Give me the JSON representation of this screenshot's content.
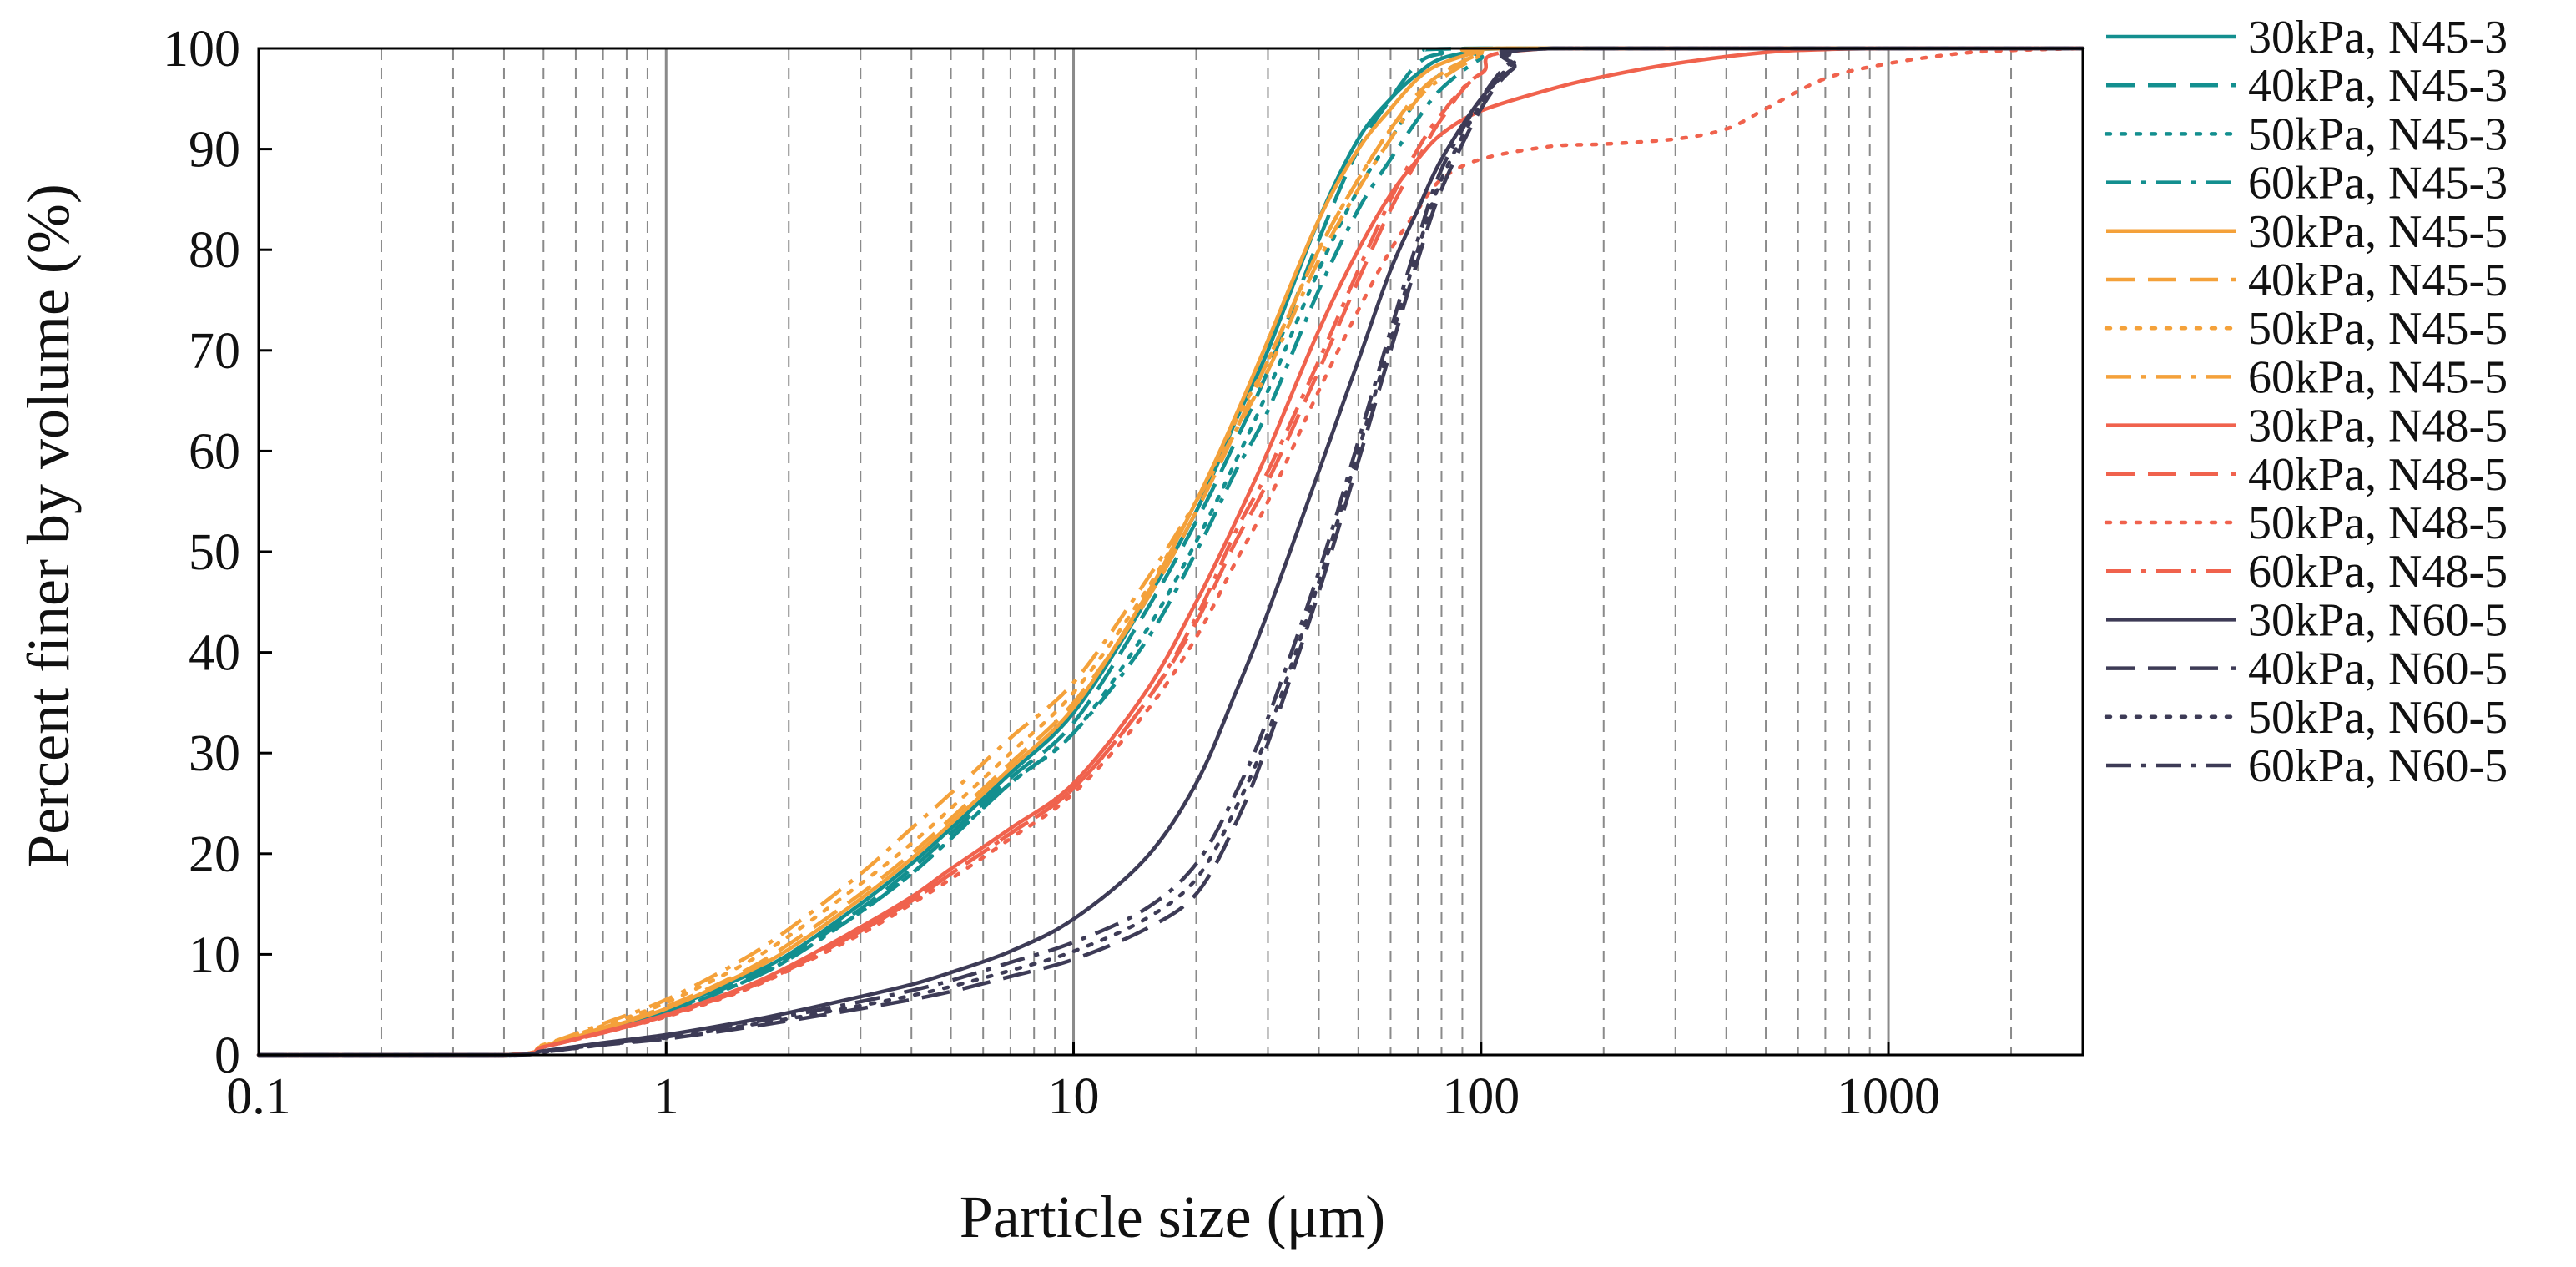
{
  "chart_data": {
    "type": "line",
    "title": "",
    "xlabel": "Particle size (μm)",
    "ylabel": "Percent finer by volume (%)",
    "xscale": "log",
    "xlim": [
      0.1,
      3000
    ],
    "ylim": [
      0,
      100
    ],
    "x_ticks": [
      0.1,
      1,
      10,
      100,
      1000
    ],
    "x_tick_labels": [
      "0.1",
      "1",
      "10",
      "100",
      "1000"
    ],
    "y_ticks": [
      0,
      10,
      20,
      30,
      40,
      50,
      60,
      70,
      80,
      90,
      100
    ],
    "y_tick_labels": [
      "0",
      "10",
      "20",
      "30",
      "40",
      "50",
      "60",
      "70",
      "80",
      "90",
      "100"
    ],
    "grid": "vertical log grid (dashed minor, solid major)",
    "legend_position": "right",
    "colors": {
      "N45-3": "#138f8f",
      "N45-5": "#f4a13a",
      "N48-5": "#f0624d",
      "N60-5": "#3d3b56",
      "axis": "#000000",
      "grid_minor": "#8a8a8a",
      "grid_major": "#8a8a8a"
    },
    "series": [
      {
        "name": "30kPa, N45-3",
        "color": "#138f8f",
        "dash": "solid",
        "x": [
          0.4,
          0.5,
          0.7,
          1,
          1.5,
          2,
          3,
          4,
          5,
          7,
          10,
          15,
          20,
          25,
          30,
          40,
          50,
          60,
          70,
          80,
          100,
          120
        ],
        "y": [
          0,
          0.8,
          2.5,
          4.5,
          7.5,
          10,
          15,
          19,
          22.5,
          28,
          34,
          45,
          54,
          63,
          70,
          83,
          91,
          95,
          97.5,
          99,
          99.8,
          100
        ]
      },
      {
        "name": "40kPa, N45-3",
        "color": "#138f8f",
        "dash": "dashed",
        "x": [
          0.4,
          0.5,
          0.7,
          1,
          1.5,
          2,
          3,
          4,
          5,
          7,
          10,
          15,
          20,
          25,
          30,
          40,
          50,
          60,
          70,
          80,
          100
        ],
        "y": [
          0,
          0.8,
          2.4,
          4.3,
          7.2,
          9.7,
          14.5,
          18.5,
          22,
          27.5,
          33,
          44,
          53,
          61,
          68,
          81,
          90,
          95,
          98.5,
          99.5,
          100
        ]
      },
      {
        "name": "50kPa, N45-3",
        "color": "#138f8f",
        "dash": "dotted",
        "x": [
          0.4,
          0.5,
          0.7,
          1,
          1.5,
          2,
          3,
          4,
          5,
          7,
          10,
          15,
          20,
          25,
          30,
          40,
          50,
          60,
          70,
          80,
          100,
          120
        ],
        "y": [
          0,
          0.8,
          2.4,
          4.2,
          7,
          9.5,
          14.2,
          18,
          21.5,
          27,
          32,
          42,
          51,
          59,
          66,
          78,
          86,
          91,
          95,
          97.5,
          99.5,
          100
        ]
      },
      {
        "name": "60kPa, N45-3",
        "color": "#138f8f",
        "dash": "dashdot",
        "x": [
          0.4,
          0.5,
          0.7,
          1,
          1.5,
          2,
          3,
          4,
          5,
          7,
          10,
          15,
          20,
          25,
          30,
          40,
          50,
          60,
          70,
          80,
          100,
          120
        ],
        "y": [
          0,
          0.8,
          2.4,
          4.2,
          7,
          9.5,
          14.2,
          18,
          21.5,
          27,
          32,
          41,
          50,
          58,
          64,
          76,
          84,
          89,
          93,
          96,
          99,
          100
        ]
      },
      {
        "name": "30kPa, N45-5",
        "color": "#f4a13a",
        "dash": "solid",
        "x": [
          0.4,
          0.5,
          0.7,
          1,
          1.5,
          2,
          3,
          4,
          5,
          7,
          10,
          15,
          20,
          25,
          30,
          40,
          50,
          60,
          70,
          80,
          100,
          120
        ],
        "y": [
          0,
          0.9,
          2.6,
          4.6,
          7.8,
          10.5,
          15.5,
          19.5,
          23,
          28.5,
          34.5,
          45.5,
          55,
          63.5,
          71,
          83,
          90,
          94,
          97,
          98.5,
          99.7,
          100
        ]
      },
      {
        "name": "40kPa, N45-5",
        "color": "#f4a13a",
        "dash": "dashed",
        "x": [
          0.4,
          0.5,
          0.7,
          1,
          1.5,
          2,
          3,
          4,
          5,
          7,
          10,
          15,
          20,
          25,
          30,
          40,
          50,
          60,
          70,
          80,
          100,
          120
        ],
        "y": [
          0,
          0.9,
          2.7,
          4.8,
          8,
          11,
          16,
          20,
          23.5,
          29,
          35,
          45,
          54,
          62,
          69,
          80,
          87,
          92,
          95.5,
          97.5,
          99.5,
          100
        ]
      },
      {
        "name": "50kPa, N45-5",
        "color": "#f4a13a",
        "dash": "dotted",
        "x": [
          0.4,
          0.5,
          0.7,
          1,
          1.5,
          2,
          3,
          4,
          5,
          7,
          10,
          15,
          20,
          25,
          30,
          40,
          50,
          60,
          70,
          80,
          100,
          120
        ],
        "y": [
          0,
          1,
          2.9,
          5.2,
          8.7,
          11.8,
          17,
          21,
          24.5,
          30,
          36,
          46,
          55,
          63,
          69,
          80,
          87,
          92,
          95,
          97.5,
          99.5,
          100
        ]
      },
      {
        "name": "60kPa, N45-5",
        "color": "#f4a13a",
        "dash": "dashdot",
        "x": [
          0.4,
          0.5,
          0.7,
          1,
          1.5,
          2,
          3,
          4,
          5,
          7,
          10,
          15,
          20,
          25,
          30,
          40,
          50,
          60,
          70,
          80,
          100,
          120
        ],
        "y": [
          0,
          1,
          3.1,
          5.5,
          9.2,
          12.5,
          18,
          22.5,
          26,
          31.5,
          37,
          47,
          55,
          62,
          68,
          79,
          86,
          91,
          95,
          97,
          99.3,
          100
        ]
      },
      {
        "name": "30kPa, N48-5",
        "color": "#f0624d",
        "dash": "solid",
        "x": [
          0.4,
          0.5,
          0.7,
          1,
          1.5,
          2,
          3,
          4,
          5,
          7,
          10,
          15,
          20,
          25,
          30,
          40,
          50,
          60,
          70,
          80,
          100,
          150,
          200,
          300,
          500,
          700,
          1000
        ],
        "y": [
          0,
          0.8,
          2.3,
          4,
          6.5,
          8.8,
          12.7,
          15.7,
          18.5,
          22.5,
          27,
          36,
          45,
          53,
          60,
          72,
          80,
          85.5,
          89,
          91.5,
          93.8,
          96,
          97.2,
          98.5,
          99.6,
          99.9,
          100
        ]
      },
      {
        "name": "40kPa, N48-5",
        "color": "#f0624d",
        "dash": "dashed",
        "x": [
          0.4,
          0.5,
          0.7,
          1,
          1.5,
          2,
          3,
          4,
          5,
          7,
          10,
          15,
          20,
          25,
          30,
          40,
          50,
          60,
          70,
          80,
          100,
          150
        ],
        "y": [
          0,
          0.8,
          2.2,
          3.9,
          6.3,
          8.5,
          12.3,
          15.3,
          18,
          22,
          26.5,
          35,
          43,
          51,
          57,
          68,
          77,
          84,
          89,
          93,
          97.5,
          100
        ]
      },
      {
        "name": "50kPa, N48-5",
        "color": "#f0624d",
        "dash": "dotted",
        "x": [
          0.4,
          0.5,
          0.7,
          1,
          1.5,
          2,
          3,
          4,
          5,
          7,
          10,
          15,
          20,
          25,
          30,
          40,
          50,
          60,
          70,
          80,
          100,
          150,
          200,
          300,
          400,
          500,
          700,
          1000,
          1500,
          2000,
          3000
        ],
        "y": [
          0,
          0.8,
          2.2,
          3.8,
          6.2,
          8.4,
          12,
          15,
          17.5,
          21.5,
          26,
          34,
          41.5,
          49,
          55,
          66,
          74,
          80,
          84,
          87,
          89,
          90.3,
          90.5,
          91,
          92,
          94,
          97,
          98.5,
          99.5,
          99.8,
          100
        ]
      },
      {
        "name": "60kPa, N48-5",
        "color": "#f0624d",
        "dash": "dashdot",
        "x": [
          0.4,
          0.5,
          0.7,
          1,
          1.5,
          2,
          3,
          4,
          5,
          7,
          10,
          15,
          20,
          25,
          30,
          40,
          50,
          60,
          70,
          80,
          100,
          150
        ],
        "y": [
          0,
          0.8,
          2.2,
          3.9,
          6.3,
          8.5,
          12.3,
          15.3,
          18,
          22,
          26.5,
          35,
          43.5,
          52,
          58,
          69,
          78,
          85,
          90,
          93.5,
          97.5,
          100
        ]
      },
      {
        "name": "30kPa, N60-5",
        "color": "#3d3b56",
        "dash": "solid",
        "x": [
          0.4,
          0.5,
          0.7,
          1,
          1.5,
          2,
          3,
          4,
          5,
          7,
          10,
          15,
          20,
          25,
          30,
          40,
          50,
          60,
          70,
          80,
          100,
          120,
          150
        ],
        "y": [
          0,
          0.4,
          1.2,
          2,
          3.2,
          4.2,
          5.8,
          7,
          8.2,
          10.3,
          13.5,
          19.5,
          27,
          36,
          44,
          58,
          69,
          78,
          84,
          89,
          95,
          98,
          100
        ]
      },
      {
        "name": "40kPa, N60-5",
        "color": "#3d3b56",
        "dash": "dashed",
        "x": [
          0.4,
          0.5,
          0.7,
          1,
          1.5,
          2,
          3,
          4,
          5,
          7,
          10,
          15,
          20,
          25,
          30,
          40,
          50,
          60,
          70,
          80,
          100,
          120,
          150
        ],
        "y": [
          0,
          0.3,
          1,
          1.6,
          2.6,
          3.4,
          4.6,
          5.5,
          6.3,
          7.8,
          9.5,
          12.5,
          16,
          23,
          31,
          46,
          59,
          70,
          79,
          86,
          94,
          98,
          100
        ]
      },
      {
        "name": "50kPa, N60-5",
        "color": "#3d3b56",
        "dash": "dotted",
        "x": [
          0.4,
          0.5,
          0.7,
          1,
          1.5,
          2,
          3,
          4,
          5,
          7,
          10,
          15,
          20,
          25,
          30,
          40,
          50,
          60,
          70,
          80,
          100,
          120,
          150
        ],
        "y": [
          0,
          0.3,
          1,
          1.7,
          2.8,
          3.6,
          4.9,
          5.9,
          6.8,
          8.4,
          10.3,
          13.5,
          17.5,
          24.5,
          32,
          47,
          60,
          71,
          80,
          87,
          94.5,
          98.5,
          100
        ]
      },
      {
        "name": "60kPa, N60-5",
        "color": "#3d3b56",
        "dash": "dashdot",
        "x": [
          0.4,
          0.5,
          0.7,
          1,
          1.5,
          2,
          3,
          4,
          5,
          7,
          10,
          15,
          20,
          25,
          30,
          40,
          50,
          60,
          70,
          80,
          100,
          120,
          150
        ],
        "y": [
          0,
          0.3,
          1.1,
          1.8,
          3,
          3.9,
          5.3,
          6.4,
          7.4,
          9.2,
          11.2,
          14.5,
          19,
          26,
          33.5,
          48,
          61,
          72,
          81,
          88,
          95,
          98.8,
          100
        ]
      }
    ]
  }
}
